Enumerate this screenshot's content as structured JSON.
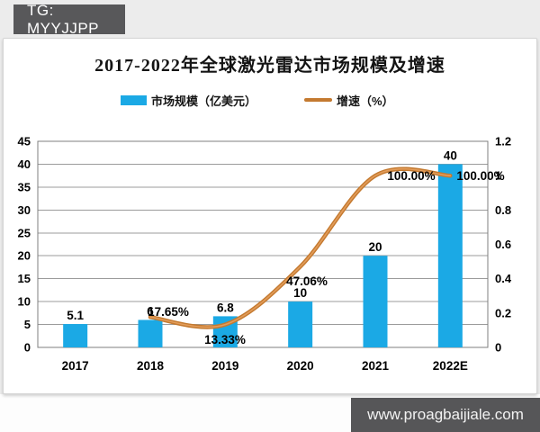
{
  "badge": {
    "text": "TG: MYYJJPP"
  },
  "watermark": {
    "text": "www.proagbaijiale.com"
  },
  "chart_data": {
    "type": "combo(bar+line)",
    "title": "2017-2022年全球激光雷达市场规模及增速",
    "categories": [
      "2017",
      "2018",
      "2019",
      "2020",
      "2021",
      "2022E"
    ],
    "series": [
      {
        "name": "市场规模（亿美元）",
        "type": "bar",
        "axis": "left",
        "color": "#1ba9e5",
        "values": [
          5.1,
          6,
          6.8,
          10,
          20,
          40
        ],
        "labels": [
          "5.1",
          "6",
          "6.8",
          "10",
          "20",
          "40"
        ]
      },
      {
        "name": "增速（%）",
        "type": "line",
        "axis": "right",
        "color": "#c47a30",
        "highlight_color": "#e29c5a",
        "values": [
          null,
          0.1765,
          0.1333,
          0.4706,
          1.0,
          1.0
        ],
        "labels": [
          null,
          "17.65%",
          "13.33%",
          "47.06%",
          "100.00%",
          "100.00%"
        ]
      }
    ],
    "left_axis": {
      "min": 0,
      "max": 45,
      "step": 5,
      "ticks": [
        "0",
        "5",
        "10",
        "15",
        "20",
        "25",
        "30",
        "35",
        "40",
        "45"
      ]
    },
    "right_axis": {
      "min": 0,
      "max": 1.2,
      "step": 0.2,
      "ticks": [
        "0",
        "0.2",
        "0.4",
        "0.6",
        "0.8",
        "1",
        "1.2"
      ]
    },
    "legend": [
      {
        "label": "市场规模（亿美元）",
        "swatch": "bar"
      },
      {
        "label": "增速（%）",
        "swatch": "line"
      }
    ],
    "grid": true,
    "legend_position": "top",
    "grid_color": "#9b9b9b",
    "frame_color": "#7f7f7f",
    "text_color": "#000000"
  }
}
